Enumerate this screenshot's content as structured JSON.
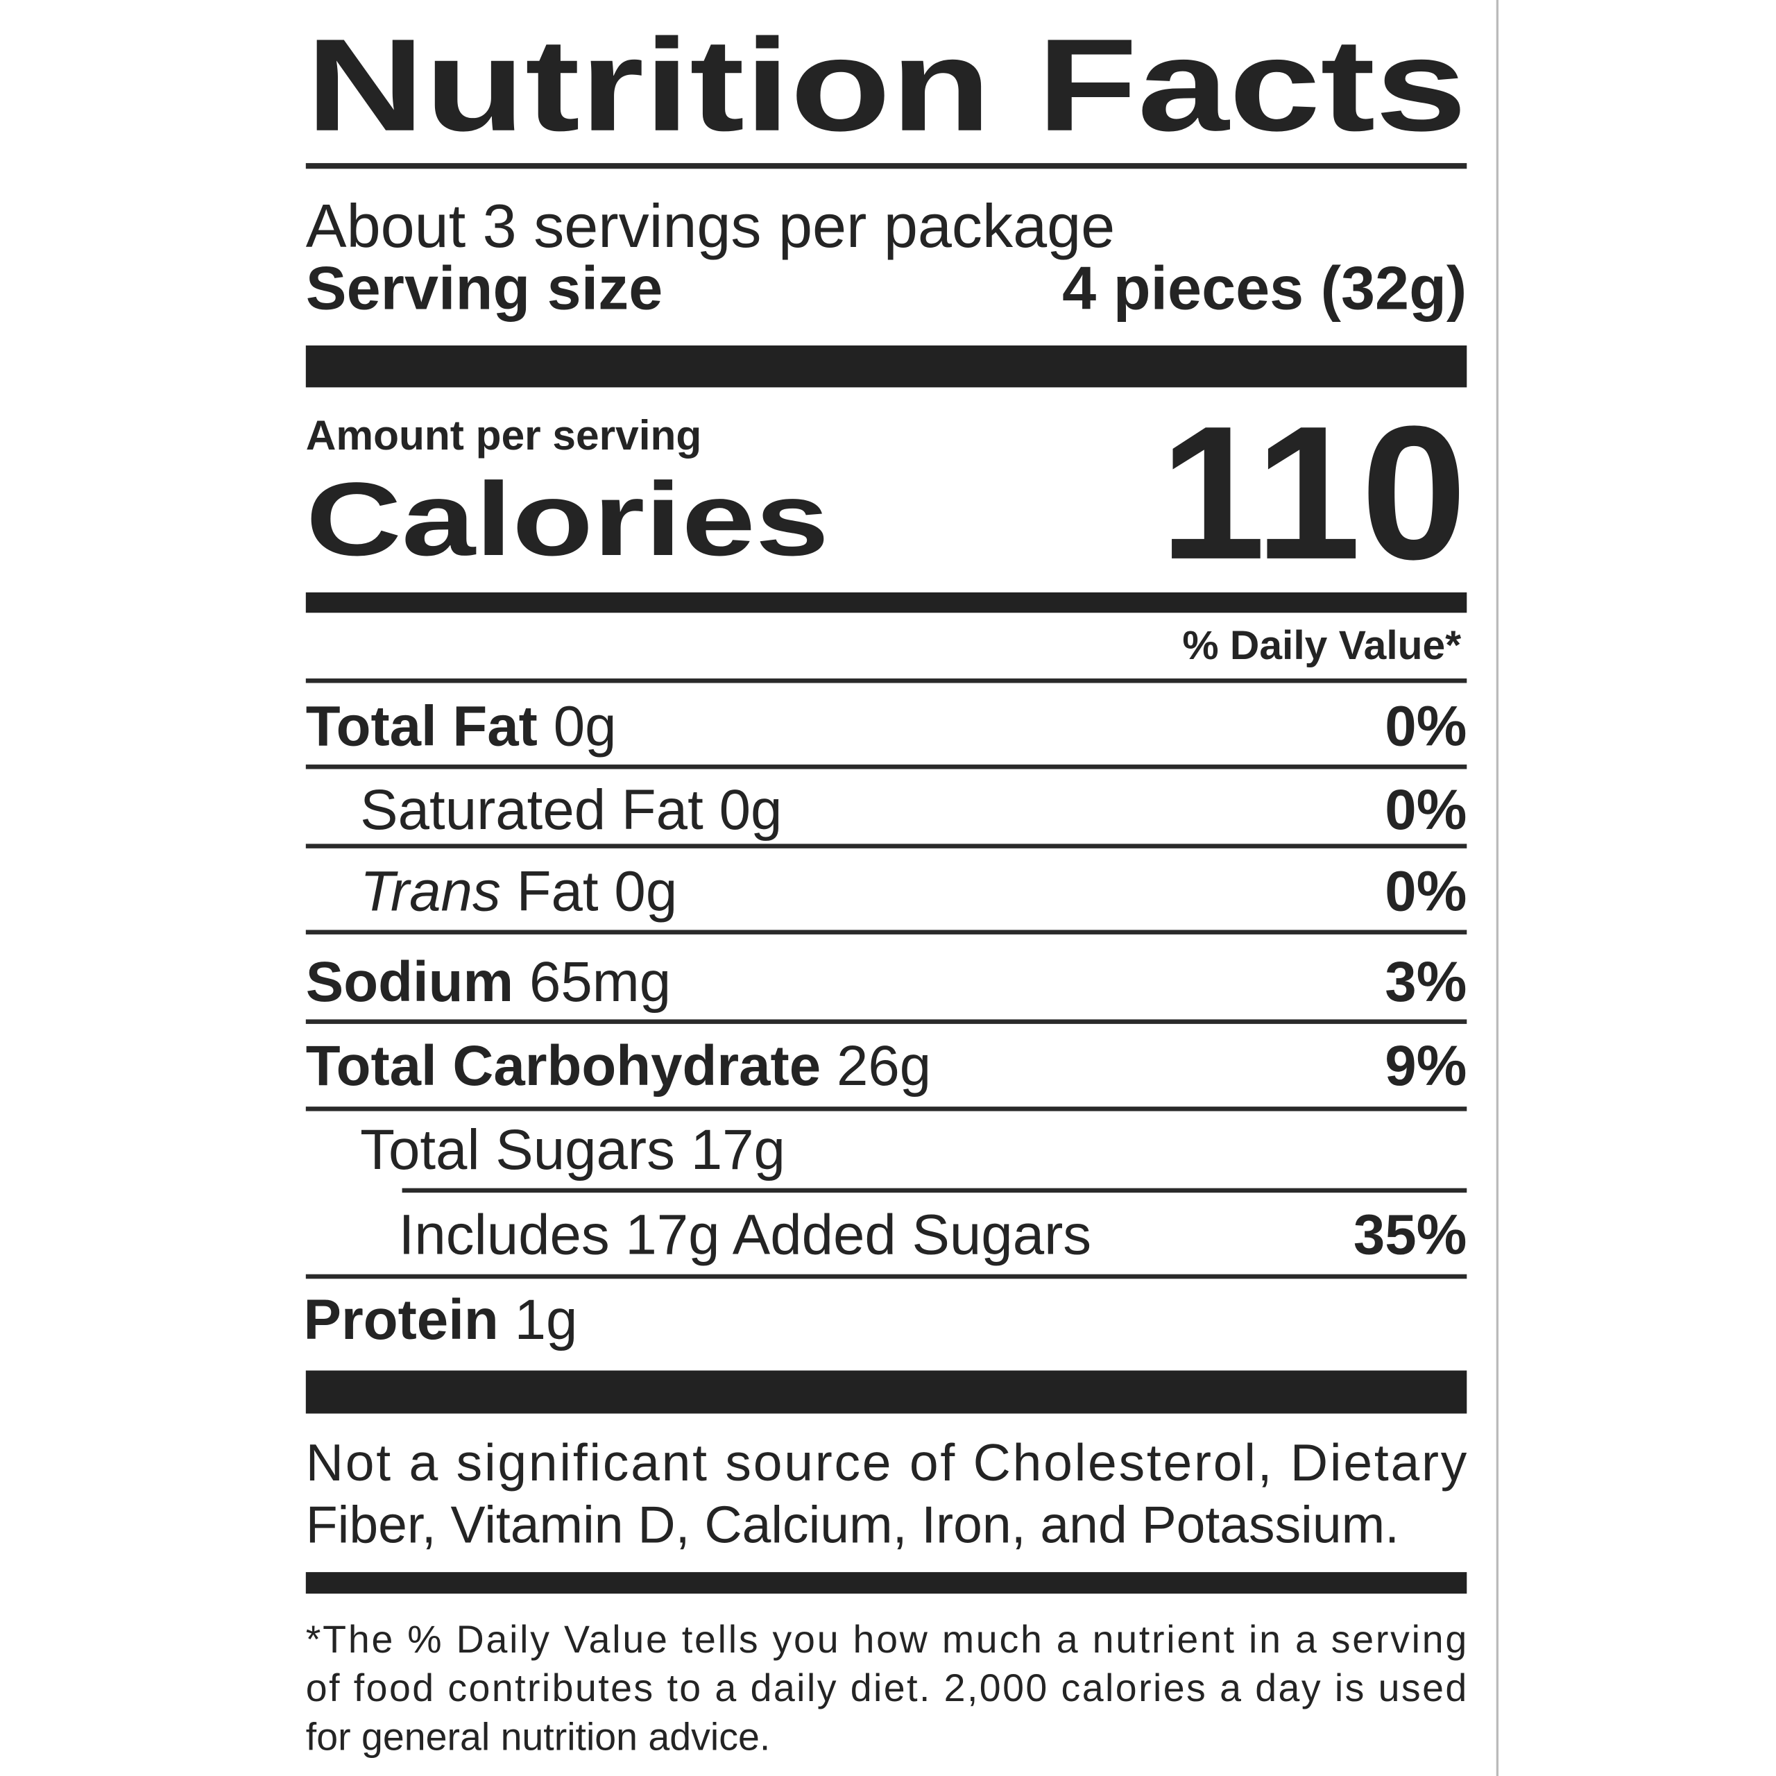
{
  "title": "Nutrition Facts",
  "servings_per_package": "About 3 servings per package",
  "serving_size": {
    "label": "Serving size",
    "value": "4 pieces (32g)"
  },
  "amount_per_serving": "Amount per serving",
  "calories": {
    "label": "Calories",
    "value": "110"
  },
  "daily_value_header": "% Daily Value*",
  "nutrients": [
    {
      "name": "Total Fat",
      "amount": "0g",
      "daily_value": "0%"
    },
    {
      "name": "Saturated Fat",
      "amount": "0g",
      "daily_value": "0%"
    },
    {
      "name_italic": "Trans",
      "name": "Fat",
      "amount": "0g",
      "daily_value": "0%"
    },
    {
      "name": "Sodium",
      "amount": "65mg",
      "daily_value": "3%"
    },
    {
      "name": "Total Carbohydrate",
      "amount": "26g",
      "daily_value": "9%"
    },
    {
      "name": "Total Sugars",
      "amount": "17g"
    },
    {
      "name": "Includes 17g Added Sugars",
      "daily_value": "35%"
    },
    {
      "name": "Protein",
      "amount": "1g"
    }
  ],
  "not_significant_note": [
    "Not a significant source of Cholesterol, Dietary",
    "Fiber, Vitamin D, Calcium, Iron, and Potassium."
  ],
  "footnote": [
    "*The % Daily Value tells you how much a nutrient in a serving",
    "of food contributes to a daily diet. 2,000 calories a day is used",
    "for general nutrition advice."
  ]
}
